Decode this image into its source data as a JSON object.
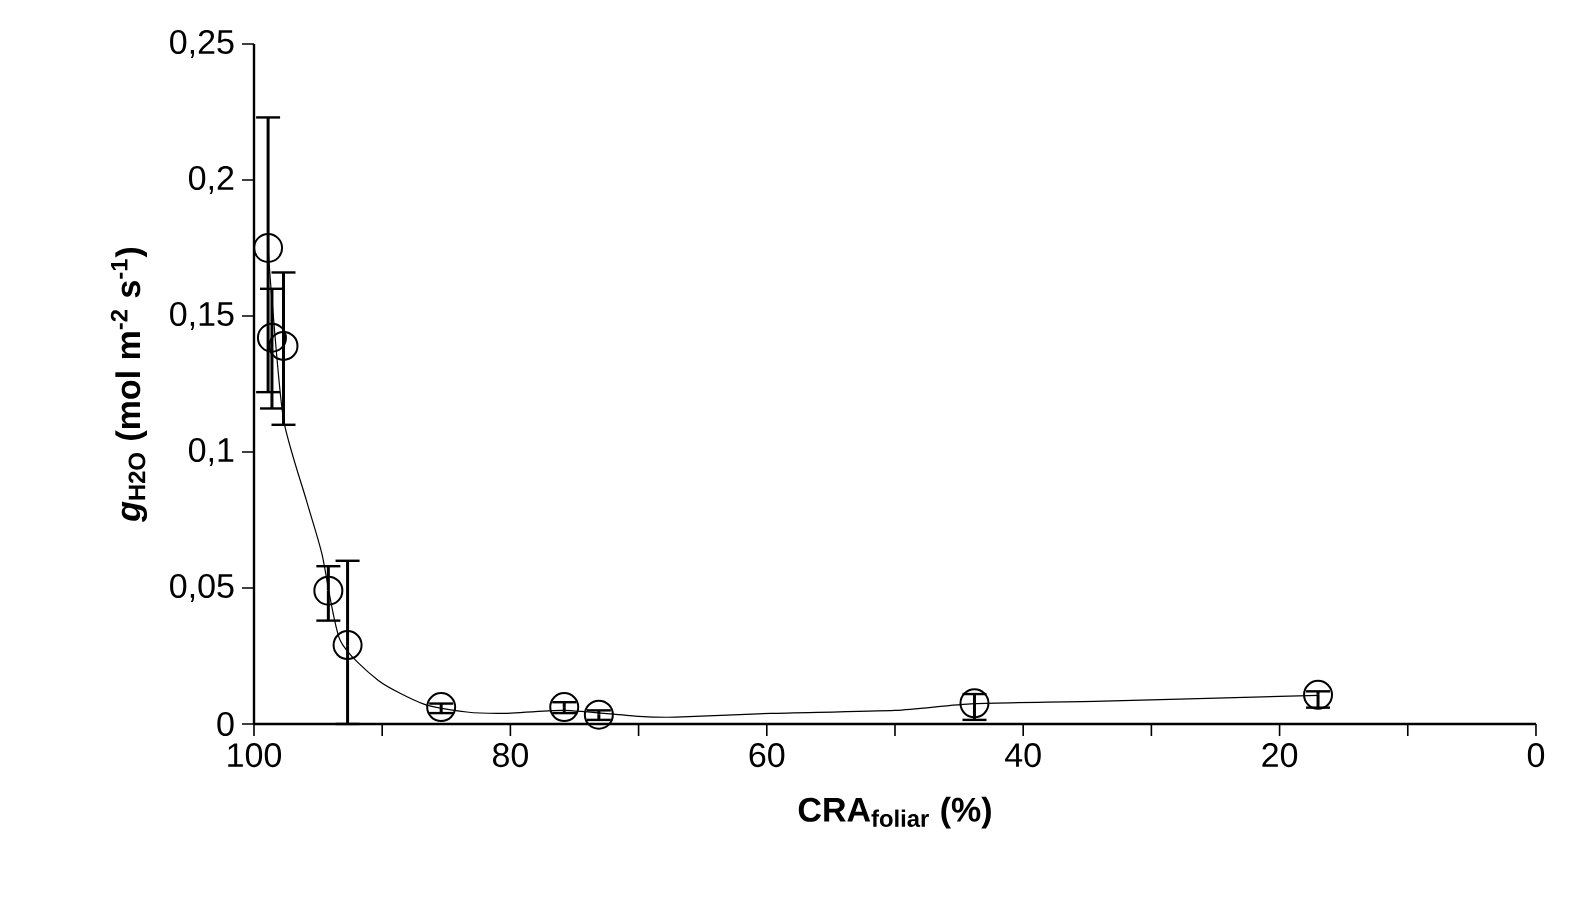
{
  "chart_data": {
    "type": "scatter",
    "xlabel": "CRA$_{foliar}$ (%)",
    "ylabel": "*g*$_{H2O}$ (mol m$^{-2}$ s$^{-1}$)",
    "xlim": [
      100,
      0
    ],
    "xticks": [
      100,
      {
        "value": 90,
        "label": null
      },
      80,
      {
        "value": 70,
        "label": null
      },
      60,
      {
        "value": 50,
        "label": null
      },
      40,
      {
        "value": 30,
        "label": null
      },
      20,
      {
        "value": 10,
        "label": null
      },
      0
    ],
    "ylim": [
      0,
      0.25
    ],
    "yticks": [
      0,
      {
        "value": 0.05,
        "label": "0,05"
      },
      {
        "value": 0.1,
        "label": "0,1"
      },
      {
        "value": 0.15,
        "label": "0,15"
      },
      {
        "value": 0.2,
        "label": "0,2"
      },
      {
        "value": 0.25,
        "label": "0,25"
      }
    ],
    "series": [
      {
        "color": "#000000",
        "marker": "circle",
        "x": [
          98.9,
          98.6,
          97.7,
          94.2,
          92.7,
          85.4,
          75.8,
          73.1,
          43.8,
          17.0
        ],
        "values": [
          0.175,
          0.142,
          0.139,
          0.049,
          0.029,
          0.0062,
          0.0062,
          0.0034,
          0.0076,
          0.0107
        ],
        "errors": [
          [
            0.122,
            0.223
          ],
          [
            0.116,
            0.16
          ],
          [
            0.11,
            0.166
          ],
          [
            0.038,
            0.058
          ],
          [
            0,
            0.06
          ],
          [
            0.004,
            0.0075
          ],
          [
            0.004,
            0.008
          ],
          [
            0.0015,
            0.005
          ],
          [
            0.0015,
            0.011
          ],
          [
            0.006,
            0.012
          ]
        ]
      },
      {
        "type": "line",
        "color": "#000000",
        "line_style": "solid",
        "x": [
          98.9,
          98.6,
          97.7,
          95.9,
          94.7,
          93.3,
          90.3,
          86.8,
          83.4,
          80.4,
          75.8,
          70,
          67.1,
          59.7,
          50,
          43.8,
          33.7,
          17.0
        ],
        "values": [
          0.175,
          0.156,
          0.112,
          0.082,
          0.0625,
          0.031,
          0.016,
          0.0074,
          0.0044,
          0.0039,
          0.005,
          0.0028,
          0.0025,
          0.0039,
          0.005,
          0.0075,
          0.0084,
          0.0105
        ]
      }
    ]
  }
}
